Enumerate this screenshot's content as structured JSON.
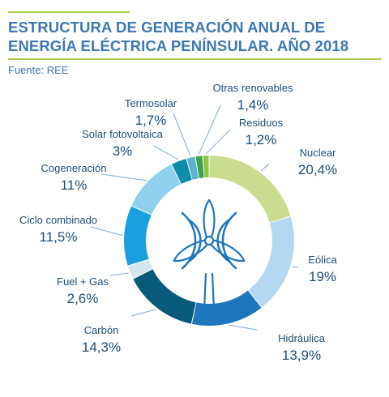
{
  "header": {
    "title_line1": "ESTRUCTURA DE GENERACIÓN ANUAL DE",
    "title_line2": "ENERGÍA ELÉCTRICA PENÍNSULAR. AÑO 2018",
    "source": "Fuente: REE"
  },
  "icon": "wind-turbine-icon",
  "colors": {
    "accent_rule": "#a9c94a",
    "title": "#3d78b3",
    "label_text": "#1d4e7a",
    "leader_line": "#8fb9dc"
  },
  "chart_data": {
    "type": "pie",
    "variant": "donut",
    "title": "ESTRUCTURA DE GENERACIÓN ANUAL DE ENERGÍA ELÉCTRICA PENÍNSULAR. AÑO 2018",
    "series": [
      {
        "name": "Nuclear",
        "label": "20,4%",
        "value": 20.4,
        "color": "#c9dc8f"
      },
      {
        "name": "Eólica",
        "label": "19%",
        "value": 19,
        "color": "#b4d8f1"
      },
      {
        "name": "Hidráulica",
        "label": "13,9%",
        "value": 13.9,
        "color": "#1f76bd"
      },
      {
        "name": "Carbón",
        "label": "14,3%",
        "value": 14.3,
        "color": "#075a7a"
      },
      {
        "name": "Fuel + Gas",
        "label": "2,6%",
        "value": 2.6,
        "color": "#d3e7f3"
      },
      {
        "name": "Ciclo combinado",
        "label": "11,5%",
        "value": 11.5,
        "color": "#1aa0dc"
      },
      {
        "name": "Cogeneración",
        "label": "11%",
        "value": 11,
        "color": "#8fd0ec"
      },
      {
        "name": "Solar fotovoltaica",
        "label": "3%",
        "value": 3,
        "color": "#0e8da6"
      },
      {
        "name": "Termosolar",
        "label": "1,7%",
        "value": 1.7,
        "color": "#5cb3cf"
      },
      {
        "name": "Otras renovables",
        "label": "1,4%",
        "value": 1.4,
        "color": "#3da04a"
      },
      {
        "name": "Residuos",
        "label": "1,2%",
        "value": 1.2,
        "color": "#8dc63f"
      }
    ]
  }
}
